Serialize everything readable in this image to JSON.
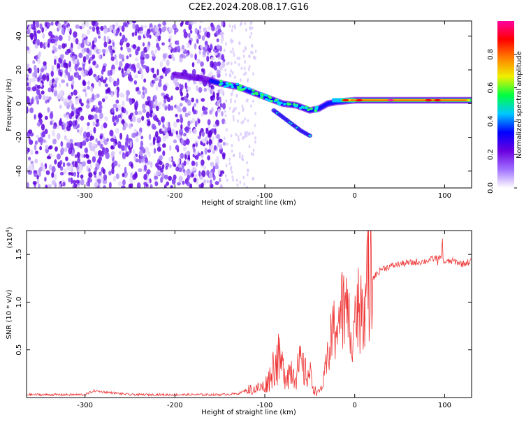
{
  "title": "C2E2.2024.208.08.17.G16",
  "chart_data": [
    {
      "type": "heatmap",
      "xlabel": "Height of straight line (km)",
      "ylabel": "Frequency (Hz)",
      "xlim": [
        -365,
        130
      ],
      "ylim": [
        -50,
        49
      ],
      "xticks": [
        -300,
        -200,
        -100,
        0,
        100
      ],
      "yticks": [
        -40,
        -20,
        0,
        20,
        40
      ],
      "colorbar": {
        "label": "Normalized spectral amplitude",
        "range": [
          0,
          1
        ],
        "ticks": [
          "0.0",
          "0.2",
          "0.4",
          "0.6",
          "0.8"
        ],
        "tick_values": [
          0,
          0.2,
          0.4,
          0.6,
          0.8
        ],
        "colors": [
          "#ffffff",
          "#a070ff",
          "#6a00e0",
          "#0000ff",
          "#00c8ff",
          "#00ff40",
          "#f0f000",
          "#ff8000",
          "#ff0000",
          "#ff00a0"
        ]
      },
      "ridge": {
        "x": [
          -200,
          -170,
          -150,
          -130,
          -110,
          -95,
          -80,
          -65,
          -50,
          -40,
          -30,
          -20,
          0,
          40,
          80,
          100,
          130
        ],
        "y": [
          17,
          15,
          12,
          10,
          6,
          3,
          0,
          -1,
          -4,
          -3,
          0,
          1,
          2,
          2,
          2,
          2,
          2
        ]
      },
      "branch": {
        "x": [
          -90,
          -75,
          -60,
          -50
        ],
        "y": [
          -4,
          -10,
          -16,
          -19
        ]
      }
    },
    {
      "type": "line",
      "xlabel": "Height of straight line (km)",
      "ylabel": "SNR (10 * v/v)",
      "exponent_label": "(x10",
      "exponent_sup": "4",
      "exponent_close": ")",
      "xlim": [
        -365,
        130
      ],
      "ylim": [
        0,
        17500
      ],
      "xticks": [
        -300,
        -200,
        -100,
        0,
        100
      ],
      "yticks": [
        5000,
        10000,
        15000
      ],
      "ytick_labels": [
        "0.5",
        "1.0",
        "1.5"
      ],
      "series": [
        {
          "color": "#ee3333",
          "x": [
            -365,
            -300,
            -290,
            -250,
            -200,
            -150,
            -130,
            -120,
            -110,
            -100,
            -95,
            -90,
            -85,
            -80,
            -75,
            -70,
            -65,
            -60,
            -55,
            -50,
            -45,
            -40,
            -35,
            -30,
            -25,
            -20,
            -15,
            -10,
            -5,
            0,
            5,
            10,
            20,
            30,
            50,
            80,
            95,
            100,
            110,
            120,
            130
          ],
          "y": [
            300,
            300,
            700,
            300,
            300,
            300,
            400,
            800,
            900,
            1200,
            2000,
            3500,
            4000,
            3000,
            2500,
            3000,
            2500,
            3500,
            2500,
            2500,
            800,
            500,
            1500,
            4000,
            6500,
            8000,
            9000,
            9000,
            7500,
            8500,
            9500,
            11000,
            12500,
            13500,
            14000,
            14300,
            14800,
            14200,
            14300,
            14000,
            14300
          ]
        }
      ]
    }
  ]
}
